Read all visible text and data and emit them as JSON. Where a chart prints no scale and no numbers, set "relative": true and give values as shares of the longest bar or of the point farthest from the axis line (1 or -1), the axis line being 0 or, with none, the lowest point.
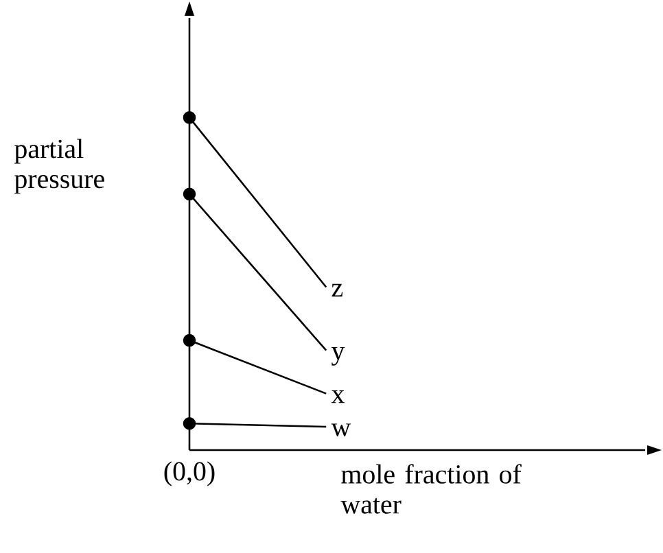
{
  "chart_data": {
    "type": "line",
    "relative": true,
    "xlabel": "mole fraction of water",
    "ylabel": "partial pressure",
    "annotations": [
      "(0,0)"
    ],
    "marker": "circle",
    "line_style": "solid",
    "categories": [
      null,
      null
    ],
    "series": [
      {
        "name": "z",
        "color": "#000000",
        "values": [
          1,
          0.49
        ]
      },
      {
        "name": "y",
        "color": "#000000",
        "values": [
          0.77,
          0.3
        ]
      },
      {
        "name": "x",
        "color": "#000000",
        "values": [
          0.33,
          0.17
        ]
      },
      {
        "name": "w",
        "color": "#000000",
        "values": [
          0.08,
          0.07
        ]
      }
    ]
  }
}
